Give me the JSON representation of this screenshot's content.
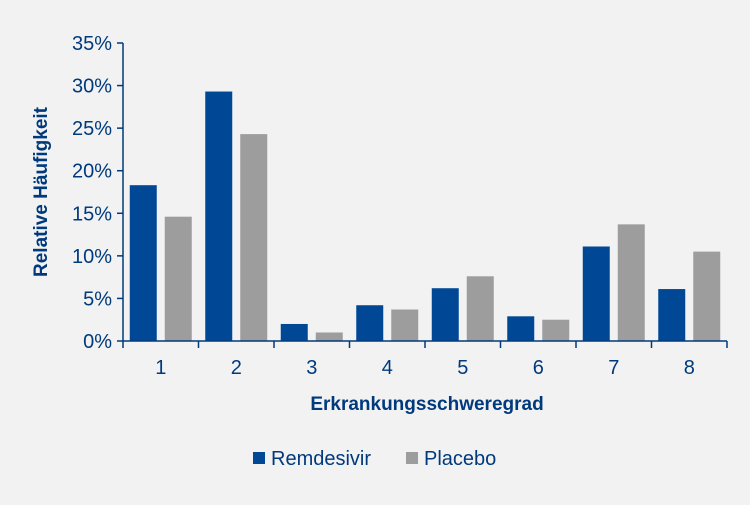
{
  "chart_data": {
    "type": "bar",
    "categories": [
      "1",
      "2",
      "3",
      "4",
      "5",
      "6",
      "7",
      "8"
    ],
    "series": [
      {
        "name": "Remdesivir",
        "values": [
          18.3,
          29.3,
          2.0,
          4.2,
          6.2,
          2.9,
          11.1,
          6.1
        ]
      },
      {
        "name": "Placebo",
        "values": [
          14.6,
          24.3,
          1.0,
          3.7,
          7.6,
          2.5,
          13.7,
          10.5
        ]
      }
    ],
    "title": "",
    "xlabel": "Erkrankungsschweregrad",
    "ylabel": "Relative Häufigkeit",
    "ylim": [
      0,
      35
    ],
    "yticks": [
      0,
      5,
      10,
      15,
      20,
      25,
      30,
      35
    ],
    "ytick_labels": [
      "0%",
      "5%",
      "10%",
      "15%",
      "20%",
      "25%",
      "30%",
      "35%"
    ],
    "grid": false,
    "legend_position": "bottom"
  },
  "colors": {
    "background": "#f2f2f2",
    "axis": "#003a7d",
    "Remdesivir": "#004896",
    "Placebo": "#9d9d9d"
  }
}
